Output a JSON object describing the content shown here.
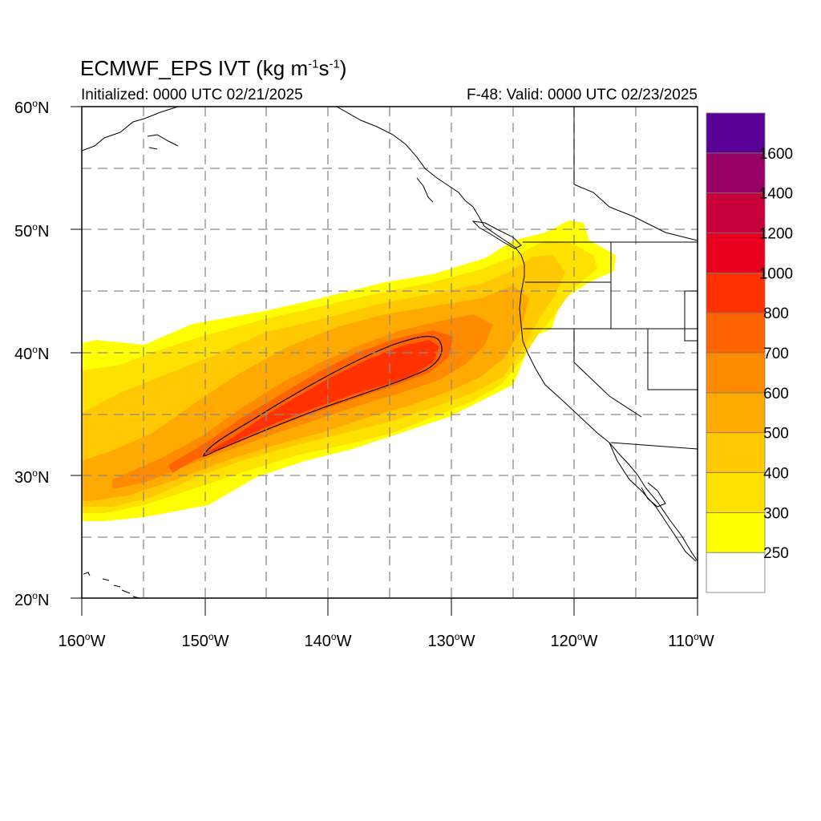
{
  "header": {
    "title_main": "ECMWF_EPS IVT (kg m",
    "title_exp1": "-1",
    "title_mid": "s",
    "title_exp2": "-1",
    "title_close": ")",
    "initialized": "Initialized: 0000 UTC 02/21/2025",
    "valid": "F-48: Valid: 0000 UTC 02/23/2025"
  },
  "axes": {
    "lat_labels": [
      {
        "deg": "60",
        "sym": "o",
        "hemi": "N",
        "value": 60
      },
      {
        "deg": "50",
        "sym": "o",
        "hemi": "N",
        "value": 50
      },
      {
        "deg": "40",
        "sym": "o",
        "hemi": "N",
        "value": 40
      },
      {
        "deg": "30",
        "sym": "o",
        "hemi": "N",
        "value": 30
      },
      {
        "deg": "20",
        "sym": "o",
        "hemi": "N",
        "value": 20
      }
    ],
    "lon_labels": [
      {
        "deg": "160",
        "sym": "o",
        "hemi": "W",
        "value": -160
      },
      {
        "deg": "150",
        "sym": "o",
        "hemi": "W",
        "value": -150
      },
      {
        "deg": "140",
        "sym": "o",
        "hemi": "W",
        "value": -140
      },
      {
        "deg": "130",
        "sym": "o",
        "hemi": "W",
        "value": -130
      },
      {
        "deg": "120",
        "sym": "o",
        "hemi": "W",
        "value": -120
      },
      {
        "deg": "110",
        "sym": "o",
        "hemi": "W",
        "value": -110
      }
    ],
    "lat_range": [
      20,
      60
    ],
    "lon_range": [
      -160,
      -110
    ],
    "grid": "dashed every 5 degrees"
  },
  "colorbar": {
    "colors": [
      "#ffffff",
      "#ffff00",
      "#ffe100",
      "#ffc800",
      "#ffaa00",
      "#ff8c00",
      "#ff6400",
      "#ff3200",
      "#e6001e",
      "#c8003c",
      "#960064",
      "#5a0096"
    ],
    "labels": [
      "250",
      "300",
      "400",
      "500",
      "600",
      "700",
      "800",
      "1000",
      "1200",
      "1400",
      "1600"
    ]
  },
  "contour": {
    "description_value": 700
  }
}
